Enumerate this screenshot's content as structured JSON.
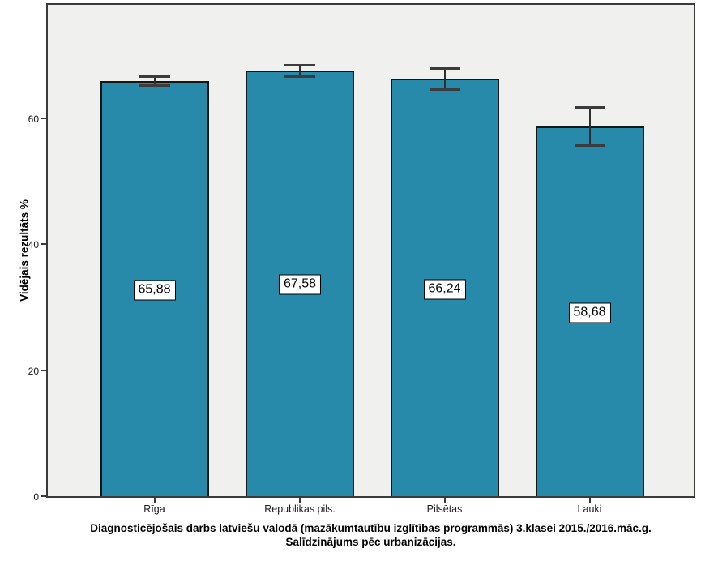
{
  "chart_data": {
    "type": "bar",
    "title_lines": [
      "Diagnosticējošais darbs latviešu valodā (mazākumtautību izglītības programmās) 3.klasei 2015./2016.māc.g.",
      "Salīdzinājums pēc urbanizācijas."
    ],
    "ylabel": "Vidējais rezultāts %",
    "xlabel": "",
    "categories": [
      "Rīga",
      "Republikas pils.",
      "Pilsētas",
      "Lauki"
    ],
    "values": [
      65.88,
      67.58,
      66.24,
      58.68
    ],
    "value_labels": [
      "65,88",
      "67,58",
      "66,24",
      "58,68"
    ],
    "error_bars": [
      {
        "lo": 65.1,
        "hi": 66.7
      },
      {
        "lo": 66.6,
        "hi": 68.5
      },
      {
        "lo": 64.5,
        "hi": 68.0
      },
      {
        "lo": 55.6,
        "hi": 61.8
      }
    ],
    "yticks": [
      0,
      20,
      40,
      60
    ],
    "ylim": [
      0,
      78
    ],
    "grid": false,
    "legend": null,
    "bar_color": "#278aab",
    "bar_border_color": "#161616",
    "plot_bg": "#f0f0ef",
    "figure_bg": "#ffffff"
  }
}
